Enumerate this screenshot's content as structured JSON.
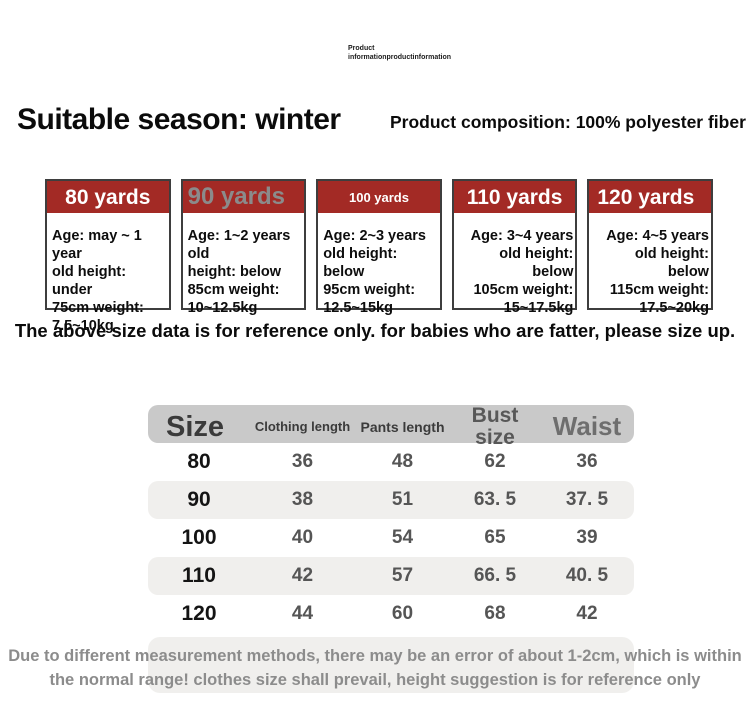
{
  "page": {
    "top_note": "Product\ninformationproductinformation",
    "season_heading": "Suitable season: winter",
    "composition_heading": "Product composition: 100% polyester fiber",
    "reference_note": "The above size data is for reference only. for babies who are fatter, please size up.",
    "disclaimer": "Due to different measurement methods, there may be an error of about 1-2cm, which is within\nthe normal range! clothes size shall prevail, height suggestion is for reference only"
  },
  "colors": {
    "card_header_red": "#a32a25",
    "card_header_gray_text": "#8b8b8b",
    "table_header_bg": "#c9c9c9",
    "row_stripe_bg": "#f0efed",
    "disclaimer_text": "#8c8c8c"
  },
  "size_cards": [
    {
      "title": "80 yards",
      "title_style": "white-center",
      "body_align": "left",
      "body": "Age: may ~ 1 year\nold height: under\n75cm weight:\n7.5~10kg"
    },
    {
      "title": "90 yards",
      "title_style": "gray-left",
      "body_align": "left",
      "body": "Age: 1~2 years old\nheight: below\n85cm weight:\n10~12.5kg"
    },
    {
      "title": "100 yards",
      "title_style": "white-center-small",
      "body_align": "left",
      "body": "Age: 2~3 years\nold height: below\n95cm weight:\n12.5~15kg"
    },
    {
      "title": "110 yards",
      "title_style": "white-center",
      "body_align": "right",
      "body": "Age: 3~4 years\nold height: below\n105cm weight:\n15~17.5kg"
    },
    {
      "title": "120 yards",
      "title_style": "white-left",
      "body_align": "right",
      "body": "Age: 4~5 years\nold height: below\n115cm weight:\n17.5~20kg"
    }
  ],
  "size_table": {
    "columns": [
      "Size",
      "Clothing length",
      "Pants length",
      "Bust size",
      "Waist"
    ],
    "rows": [
      {
        "size": "80",
        "values": [
          "36",
          "48",
          "62",
          "36"
        ]
      },
      {
        "size": "90",
        "values": [
          "38",
          "51",
          "63. 5",
          "37. 5"
        ]
      },
      {
        "size": "100",
        "values": [
          "40",
          "54",
          "65",
          "39"
        ]
      },
      {
        "size": "110",
        "values": [
          "42",
          "57",
          "66. 5",
          "40. 5"
        ]
      },
      {
        "size": "120",
        "values": [
          "44",
          "60",
          "68",
          "42"
        ]
      }
    ]
  }
}
